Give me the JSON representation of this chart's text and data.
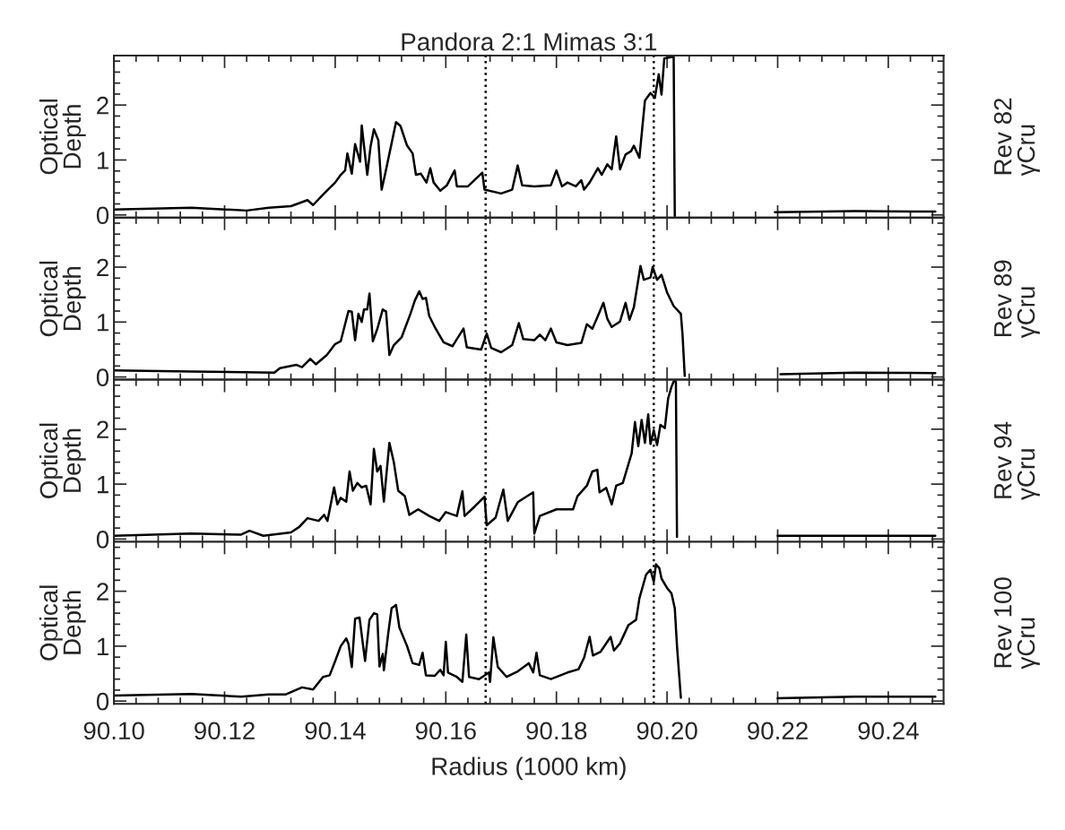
{
  "chart_data": [
    {
      "type": "line",
      "title": "Pandora 2:1 Mimas 3:1",
      "ylabel": "Optical\nDepth",
      "y2label": "Rev 82\nγCru",
      "xlim": [
        90.1,
        90.25
      ],
      "ylim": [
        -0.05,
        2.9
      ],
      "yticks": [
        0,
        1,
        2
      ],
      "tick_labels": "y",
      "grid": false,
      "legend": false,
      "line_style": "solid",
      "marker": "none",
      "ref_lines": [
        {
          "axis": "x",
          "value": 90.1672,
          "color": "#000000",
          "line_style": "dotted"
        },
        {
          "axis": "x",
          "value": 90.1976,
          "color": "#000000",
          "line_style": "dotted"
        }
      ],
      "series": [
        {
          "color": "#000000",
          "x": [
            90.1,
            90.114,
            90.124,
            90.128,
            90.132,
            90.135,
            90.136,
            90.138,
            90.14,
            90.141,
            90.1418,
            90.1422,
            90.143,
            90.1436,
            90.1445,
            90.1448,
            90.1458,
            90.1464,
            90.147,
            90.1478,
            90.1484,
            90.149,
            90.15,
            90.151,
            90.1518,
            90.153,
            90.154,
            90.1546,
            90.1555,
            90.1565,
            90.1572,
            90.1578,
            90.159,
            90.1602,
            90.1616,
            90.162,
            90.164,
            90.1666,
            90.167,
            90.17,
            90.172,
            90.173,
            90.1738,
            90.176,
            90.179,
            90.18,
            90.181,
            90.182,
            90.1835,
            90.1845,
            90.185,
            90.186,
            90.1875,
            90.1882,
            90.1892,
            90.19,
            90.1908,
            90.1915,
            90.1925,
            90.1935,
            90.194,
            90.195,
            90.196,
            90.197,
            90.1978,
            90.1985,
            90.199,
            90.1995,
            90.2012,
            90.2014,
            90.209,
            90.2195,
            90.234,
            90.2485
          ],
          "values": [
            0.1,
            0.13,
            0.08,
            0.13,
            0.16,
            0.27,
            0.18,
            0.39,
            0.59,
            0.73,
            0.81,
            1.12,
            0.75,
            1.29,
            0.97,
            1.63,
            0.73,
            1.25,
            1.56,
            1.36,
            0.46,
            0.73,
            1.21,
            1.69,
            1.62,
            1.26,
            1.12,
            0.73,
            0.75,
            0.59,
            0.85,
            0.59,
            0.44,
            0.54,
            0.81,
            0.52,
            0.52,
            0.77,
            0.46,
            0.39,
            0.46,
            0.9,
            0.54,
            0.52,
            0.54,
            0.81,
            0.52,
            0.59,
            0.52,
            0.63,
            0.46,
            0.59,
            0.85,
            0.73,
            0.92,
            0.83,
            1.43,
            0.83,
            1.1,
            1.16,
            1.26,
            1.04,
            2.08,
            2.22,
            2.13,
            2.56,
            2.19,
            2.85,
            2.88,
            -0.02,
            null,
            0.05,
            0.07,
            0.06
          ]
        }
      ]
    },
    {
      "type": "line",
      "ylabel": "Optical\nDepth",
      "y2label": "Rev 89\nγCru",
      "xlim": [
        90.1,
        90.25
      ],
      "ylim": [
        -0.05,
        2.9
      ],
      "yticks": [
        0,
        1,
        2
      ],
      "tick_labels": "y",
      "grid": false,
      "legend": false,
      "line_style": "solid",
      "marker": "none",
      "ref_lines": [
        {
          "axis": "x",
          "value": 90.1672,
          "color": "#000000",
          "line_style": "dotted"
        },
        {
          "axis": "x",
          "value": 90.1976,
          "color": "#000000",
          "line_style": "dotted"
        }
      ],
      "series": [
        {
          "color": "#000000",
          "x": [
            90.1,
            90.114,
            90.129,
            90.13,
            90.133,
            90.134,
            90.1355,
            90.1365,
            90.1385,
            90.14,
            90.141,
            90.1424,
            90.143,
            90.1436,
            90.1442,
            90.1448,
            90.1452,
            90.1458,
            90.1462,
            90.1468,
            90.1476,
            90.1486,
            90.1492,
            90.1498,
            90.1506,
            90.152,
            90.1536,
            90.1544,
            90.1552,
            90.1558,
            90.1564,
            90.157,
            90.158,
            90.1596,
            90.1612,
            90.1632,
            90.1638,
            90.1664,
            90.1674,
            90.1682,
            90.17,
            90.172,
            90.1732,
            90.174,
            90.176,
            90.177,
            90.178,
            90.179,
            90.18,
            90.182,
            90.1845,
            90.1855,
            90.1865,
            90.1875,
            90.1885,
            90.1892,
            90.19,
            90.1915,
            90.1925,
            90.1932,
            90.194,
            90.1952,
            90.1958,
            90.197,
            90.1974,
            90.1982,
            90.199,
            90.2,
            90.2012,
            90.2025,
            90.2028,
            90.2032,
            90.212,
            90.2205,
            90.234,
            90.2485
          ],
          "values": [
            0.12,
            0.1,
            0.08,
            0.16,
            0.22,
            0.18,
            0.33,
            0.23,
            0.4,
            0.6,
            0.65,
            1.2,
            1.19,
            0.67,
            1.15,
            1.0,
            1.23,
            1.23,
            1.52,
            0.65,
            0.87,
            1.23,
            1.19,
            0.4,
            0.58,
            0.72,
            1.15,
            1.39,
            1.56,
            1.42,
            1.44,
            1.11,
            0.91,
            0.63,
            0.56,
            0.88,
            0.54,
            0.5,
            0.79,
            0.53,
            0.45,
            0.58,
            0.98,
            0.69,
            0.67,
            0.77,
            0.67,
            0.88,
            0.63,
            0.58,
            0.62,
            0.96,
            0.88,
            1.11,
            1.35,
            1.06,
            0.91,
            1.01,
            1.35,
            1.04,
            1.27,
            2.02,
            1.77,
            1.81,
            2.0,
            1.77,
            1.86,
            1.54,
            1.29,
            1.15,
            0.77,
            0.02,
            null,
            0.05,
            0.08,
            0.07
          ]
        }
      ]
    },
    {
      "type": "line",
      "ylabel": "Optical\nDepth",
      "y2label": "Rev 94\nγCru",
      "xlim": [
        90.1,
        90.25
      ],
      "ylim": [
        -0.05,
        2.9
      ],
      "yticks": [
        0,
        1,
        2
      ],
      "tick_labels": "y",
      "grid": false,
      "legend": false,
      "line_style": "solid",
      "marker": "none",
      "ref_lines": [
        {
          "axis": "x",
          "value": 90.1672,
          "color": "#000000",
          "line_style": "dotted"
        },
        {
          "axis": "x",
          "value": 90.1976,
          "color": "#000000",
          "line_style": "dotted"
        }
      ],
      "series": [
        {
          "color": "#000000",
          "x": [
            90.1,
            90.114,
            90.123,
            90.1245,
            90.127,
            90.132,
            90.1335,
            90.135,
            90.137,
            90.138,
            90.1386,
            90.1398,
            90.1404,
            90.141,
            90.142,
            90.1426,
            90.1432,
            90.144,
            90.1448,
            90.1456,
            90.1464,
            90.147,
            90.1476,
            90.1482,
            90.1488,
            90.1498,
            90.1506,
            90.1514,
            90.1526,
            90.1534,
            90.155,
            90.157,
            90.1588,
            90.16,
            90.162,
            90.163,
            90.1634,
            90.1652,
            90.167,
            90.1674,
            90.169,
            90.1704,
            90.1712,
            90.173,
            90.1758,
            90.176,
            90.177,
            90.18,
            90.183,
            90.1838,
            90.1855,
            90.1865,
            90.1874,
            90.1878,
            90.189,
            90.19,
            90.1908,
            90.192,
            90.1928,
            90.1936,
            90.1942,
            90.1948,
            90.1954,
            90.196,
            90.1966,
            90.197,
            90.1976,
            90.1982,
            90.1988,
            90.1996,
            90.2002,
            90.2008,
            90.2012,
            90.2016,
            90.2018,
            90.211,
            90.22,
            90.234,
            90.2485
          ],
          "values": [
            0.06,
            0.1,
            0.08,
            0.15,
            0.06,
            0.12,
            0.22,
            0.38,
            0.33,
            0.44,
            0.33,
            0.94,
            0.63,
            0.75,
            0.68,
            1.23,
            0.88,
            1.02,
            0.94,
            0.97,
            0.63,
            1.64,
            1.23,
            1.33,
            0.68,
            1.75,
            1.4,
            0.88,
            0.78,
            0.44,
            0.54,
            0.42,
            0.33,
            0.49,
            0.42,
            0.87,
            0.42,
            0.59,
            0.77,
            0.25,
            0.39,
            0.9,
            0.33,
            0.67,
            0.85,
            0.1,
            0.42,
            0.54,
            0.54,
            0.78,
            0.97,
            1.23,
            1.26,
            0.85,
            0.93,
            0.63,
            0.97,
            1.02,
            1.29,
            1.56,
            2.13,
            1.69,
            2.17,
            1.75,
            2.27,
            1.73,
            1.98,
            1.71,
            2.08,
            2.02,
            2.56,
            2.77,
            2.87,
            2.87,
            0.04,
            null,
            0.06,
            0.06,
            0.06
          ]
        }
      ]
    },
    {
      "type": "line",
      "xlabel": "Radius (1000 km)",
      "ylabel": "Optical\nDepth",
      "y2label": "Rev 100\nγCru",
      "xlim": [
        90.1,
        90.25
      ],
      "xticks": [
        {
          "value": 90.1,
          "label": "90.10"
        },
        90.12,
        90.14,
        90.16,
        90.18,
        {
          "value": 90.2,
          "label": "90.20"
        },
        90.22,
        90.24
      ],
      "ylim": [
        -0.05,
        2.9
      ],
      "yticks": [
        0,
        1,
        2
      ],
      "grid": false,
      "legend": false,
      "line_style": "solid",
      "marker": "none",
      "ref_lines": [
        {
          "axis": "x",
          "value": 90.1672,
          "color": "#000000",
          "line_style": "dotted"
        },
        {
          "axis": "x",
          "value": 90.1976,
          "color": "#000000",
          "line_style": "dotted"
        }
      ],
      "series": [
        {
          "color": "#000000",
          "x": [
            90.1,
            90.114,
            90.123,
            90.128,
            90.131,
            90.134,
            90.136,
            90.1378,
            90.139,
            90.14,
            90.141,
            90.142,
            90.1424,
            90.143,
            90.1436,
            90.1444,
            90.1454,
            90.1462,
            90.147,
            90.1476,
            90.148,
            90.1486,
            90.1488,
            90.1496,
            90.1502,
            90.151,
            90.1516,
            90.153,
            90.154,
            90.1552,
            90.1558,
            90.1564,
            90.158,
            90.159,
            90.1596,
            90.16,
            90.1604,
            90.162,
            90.163,
            90.1637,
            90.1642,
            90.166,
            90.1678,
            90.168,
            90.1686,
            90.1694,
            90.171,
            90.173,
            90.175,
            90.1758,
            90.1764,
            90.177,
            90.179,
            90.182,
            90.184,
            90.185,
            90.186,
            90.1866,
            90.188,
            90.1898,
            90.1904,
            90.1915,
            90.193,
            90.1944,
            90.195,
            90.1962,
            90.197,
            90.1976,
            90.198,
            90.1986,
            90.199,
            90.2,
            90.2008,
            90.2014,
            90.2018,
            90.2025,
            90.211,
            90.22,
            90.234,
            90.2485
          ],
          "values": [
            0.1,
            0.13,
            0.08,
            0.12,
            0.12,
            0.25,
            0.21,
            0.44,
            0.47,
            0.73,
            1.0,
            1.14,
            1.04,
            0.62,
            1.5,
            1.52,
            0.73,
            1.48,
            1.6,
            1.58,
            0.63,
            0.86,
            0.56,
            1.24,
            1.69,
            1.75,
            1.34,
            1.0,
            0.69,
            0.66,
            0.88,
            0.47,
            0.46,
            0.57,
            0.47,
            1.08,
            0.52,
            0.44,
            0.35,
            1.21,
            0.44,
            0.4,
            0.52,
            0.35,
            1.16,
            0.62,
            0.44,
            0.54,
            0.69,
            0.52,
            0.88,
            0.47,
            0.4,
            0.52,
            0.58,
            0.79,
            1.17,
            0.83,
            0.9,
            1.17,
            0.92,
            1.05,
            1.38,
            1.48,
            1.87,
            2.3,
            2.39,
            2.17,
            2.49,
            2.42,
            2.23,
            2.06,
            1.96,
            1.69,
            1.0,
            0.06,
            null,
            0.05,
            0.08,
            0.08
          ]
        }
      ]
    }
  ]
}
